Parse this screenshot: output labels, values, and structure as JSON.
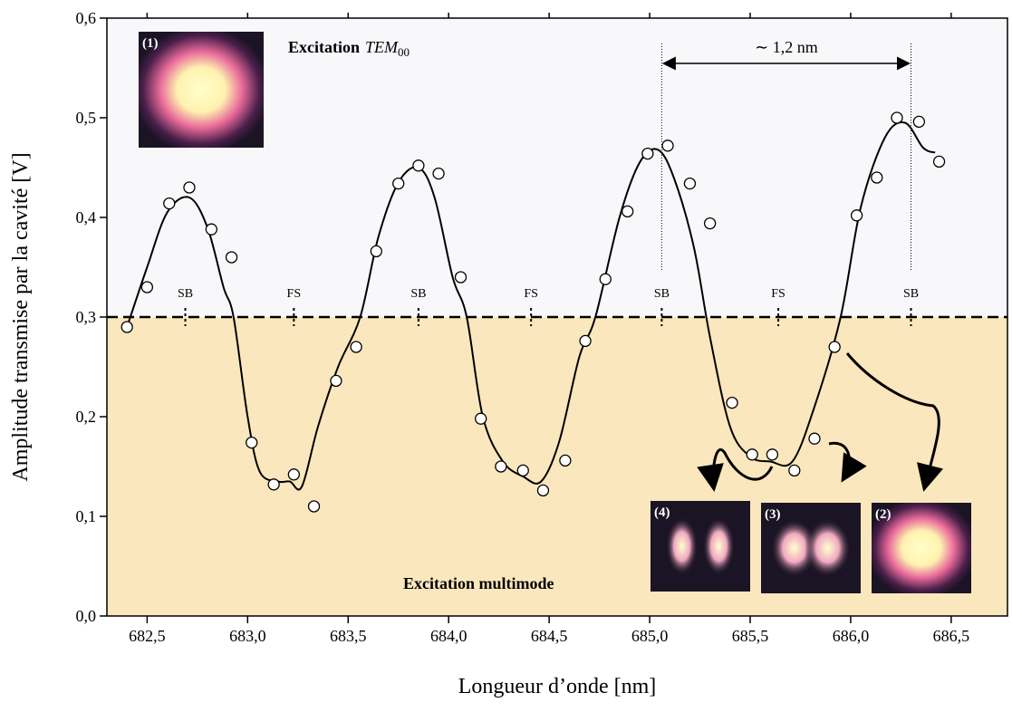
{
  "chart_data": {
    "type": "scatter",
    "xlabel": "Longueur d’onde [nm]",
    "ylabel": "Amplitude transmise par la cavité [V]",
    "xlim": [
      682.3,
      686.78
    ],
    "ylim": [
      0,
      0.6
    ],
    "xticks": [
      {
        "value": 682.5,
        "label": "682,5"
      },
      {
        "value": 683.0,
        "label": "683,0"
      },
      {
        "value": 683.5,
        "label": "683,5"
      },
      {
        "value": 684.0,
        "label": "684,0"
      },
      {
        "value": 684.5,
        "label": "684,5"
      },
      {
        "value": 685.0,
        "label": "685,0"
      },
      {
        "value": 685.5,
        "label": "685,5"
      },
      {
        "value": 686.0,
        "label": "686,0"
      },
      {
        "value": 686.5,
        "label": "686,5"
      }
    ],
    "yticks": [
      {
        "value": 0,
        "label": "0,0"
      },
      {
        "value": 0.1,
        "label": "0,1"
      },
      {
        "value": 0.2,
        "label": "0,2"
      },
      {
        "value": 0.3,
        "label": "0,3"
      },
      {
        "value": 0.4,
        "label": "0,4"
      },
      {
        "value": 0.5,
        "label": "0,5"
      },
      {
        "value": 0.6,
        "label": "0,6"
      }
    ],
    "points": {
      "x": [
        682.4,
        682.5,
        682.61,
        682.71,
        682.82,
        682.92,
        683.02,
        683.13,
        683.23,
        683.33,
        683.44,
        683.54,
        683.64,
        683.75,
        683.85,
        683.95,
        684.06,
        684.16,
        684.26,
        684.37,
        684.47,
        684.58,
        684.68,
        684.78,
        684.89,
        684.99,
        685.09,
        685.2,
        685.3,
        685.41,
        685.51,
        685.61,
        685.72,
        685.82,
        685.92,
        686.03,
        686.13,
        686.23,
        686.34,
        686.44
      ],
      "values": [
        0.29,
        0.33,
        0.414,
        0.43,
        0.388,
        0.36,
        0.174,
        0.132,
        0.142,
        0.11,
        0.236,
        0.27,
        0.366,
        0.434,
        0.452,
        0.444,
        0.34,
        0.198,
        0.15,
        0.146,
        0.126,
        0.156,
        0.276,
        0.338,
        0.406,
        0.464,
        0.472,
        0.434,
        0.394,
        0.214,
        0.162,
        0.162,
        0.146,
        0.178,
        0.27,
        0.402,
        0.44,
        0.5,
        0.496,
        0.456
      ]
    },
    "fit": {
      "x": [
        682.4,
        682.5,
        682.6,
        682.71,
        682.8,
        682.88,
        682.93,
        683.0,
        683.06,
        683.15,
        683.21,
        683.27,
        683.35,
        683.45,
        683.56,
        683.65,
        683.75,
        683.85,
        683.93,
        684.02,
        684.09,
        684.17,
        684.27,
        684.37,
        684.46,
        684.55,
        684.65,
        684.73,
        684.85,
        684.95,
        685.04,
        685.12,
        685.22,
        685.3,
        685.4,
        685.5,
        685.6,
        685.71,
        685.82,
        685.95,
        686.05,
        686.17,
        686.27,
        686.36,
        686.42
      ],
      "values": [
        0.29,
        0.35,
        0.405,
        0.42,
        0.39,
        0.33,
        0.3,
        0.2,
        0.145,
        0.135,
        0.135,
        0.13,
        0.19,
        0.25,
        0.3,
        0.38,
        0.435,
        0.45,
        0.42,
        0.34,
        0.3,
        0.2,
        0.155,
        0.14,
        0.135,
        0.175,
        0.26,
        0.3,
        0.4,
        0.455,
        0.468,
        0.44,
        0.37,
        0.28,
        0.19,
        0.16,
        0.155,
        0.155,
        0.21,
        0.3,
        0.41,
        0.48,
        0.495,
        0.47,
        0.465
      ]
    },
    "threshold": 0.3,
    "markers": [
      {
        "label": "SB",
        "x": 682.69
      },
      {
        "label": "FS",
        "x": 683.23
      },
      {
        "label": "SB",
        "x": 683.85
      },
      {
        "label": "FS",
        "x": 684.41
      },
      {
        "label": "SB",
        "x": 685.06
      },
      {
        "label": "FS",
        "x": 685.64
      },
      {
        "label": "SB",
        "x": 686.3
      }
    ],
    "interval": {
      "label": "∼ 1,2 nm",
      "x": [
        685.06,
        686.3
      ]
    },
    "annotations": {
      "top": "Excitation",
      "top_mode": "TEM",
      "top_sub": "00",
      "bottom": "Excitation multimode"
    },
    "insets": [
      "(1)",
      "(2)",
      "(3)",
      "(4)"
    ]
  }
}
